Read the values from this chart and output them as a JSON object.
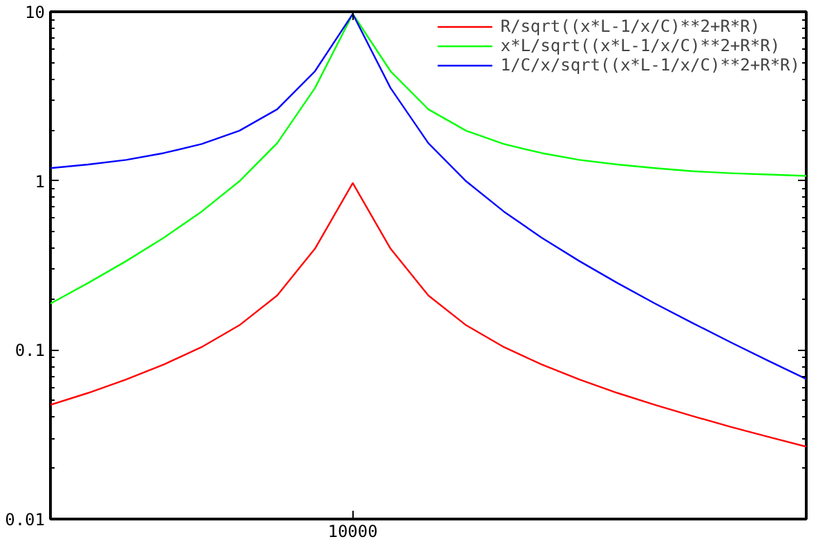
{
  "chart_data": {
    "type": "line",
    "log": "y",
    "grid": false,
    "legend": "top right",
    "line_style": "solid",
    "marker": "none",
    "categories": [
      null,
      null,
      null,
      null,
      null,
      null,
      null,
      null,
      "10000",
      null,
      null,
      null,
      null,
      null,
      null,
      null,
      null,
      null,
      null,
      null,
      null
    ],
    "ylim": [
      0.01,
      10
    ],
    "yticks": [
      0.01,
      {
        "value": 0.02,
        "label": null
      },
      {
        "value": 0.03,
        "label": null
      },
      {
        "value": 0.04,
        "label": null
      },
      {
        "value": 0.05,
        "label": null
      },
      {
        "value": 0.06,
        "label": null
      },
      {
        "value": 0.07,
        "label": null
      },
      {
        "value": 0.08,
        "label": null
      },
      {
        "value": 0.09,
        "label": null
      },
      0.1,
      {
        "value": 0.2,
        "label": null
      },
      {
        "value": 0.3,
        "label": null
      },
      {
        "value": 0.4,
        "label": null
      },
      {
        "value": 0.5,
        "label": null
      },
      {
        "value": 0.6,
        "label": null
      },
      {
        "value": 0.7,
        "label": null
      },
      {
        "value": 0.8,
        "label": null
      },
      {
        "value": 0.9,
        "label": null
      },
      1,
      {
        "value": 2,
        "label": null
      },
      {
        "value": 3,
        "label": null
      },
      {
        "value": 4,
        "label": null
      },
      {
        "value": 5,
        "label": null
      },
      {
        "value": 6,
        "label": null
      },
      {
        "value": 7,
        "label": null
      },
      {
        "value": 8,
        "label": null
      },
      {
        "value": 9,
        "label": null
      },
      10
    ],
    "series": [
      {
        "name": "R/sqrt((x*L-1/x/C)**2+R*R)",
        "color": "#ff0000",
        "values": [
          0.0473,
          0.0557,
          0.0668,
          0.082,
          0.104,
          0.14,
          0.21,
          0.397,
          0.97,
          0.397,
          0.21,
          0.14,
          0.104,
          0.082,
          0.0668,
          0.0557,
          0.0473,
          0.0406,
          0.0351,
          0.0306,
          0.0268
        ]
      },
      {
        "name": "x*L/sqrt((x*L-1/x/C)**2+R*R)",
        "color": "#00ff00",
        "values": [
          0.188,
          0.249,
          0.335,
          0.461,
          0.658,
          0.994,
          1.67,
          3.54,
          9.7,
          4.45,
          2.65,
          1.98,
          1.65,
          1.46,
          1.33,
          1.25,
          1.19,
          1.14,
          1.11,
          1.09,
          1.07
        ]
      },
      {
        "name": "1/C/x/sqrt((x*L-1/x/C)**2+R*R)",
        "color": "#0000ff",
        "values": [
          1.19,
          1.25,
          1.33,
          1.46,
          1.65,
          1.98,
          2.65,
          4.45,
          9.7,
          3.54,
          1.67,
          0.994,
          0.658,
          0.461,
          0.335,
          0.249,
          0.188,
          0.144,
          0.111,
          0.0862,
          0.0673
        ]
      }
    ]
  }
}
